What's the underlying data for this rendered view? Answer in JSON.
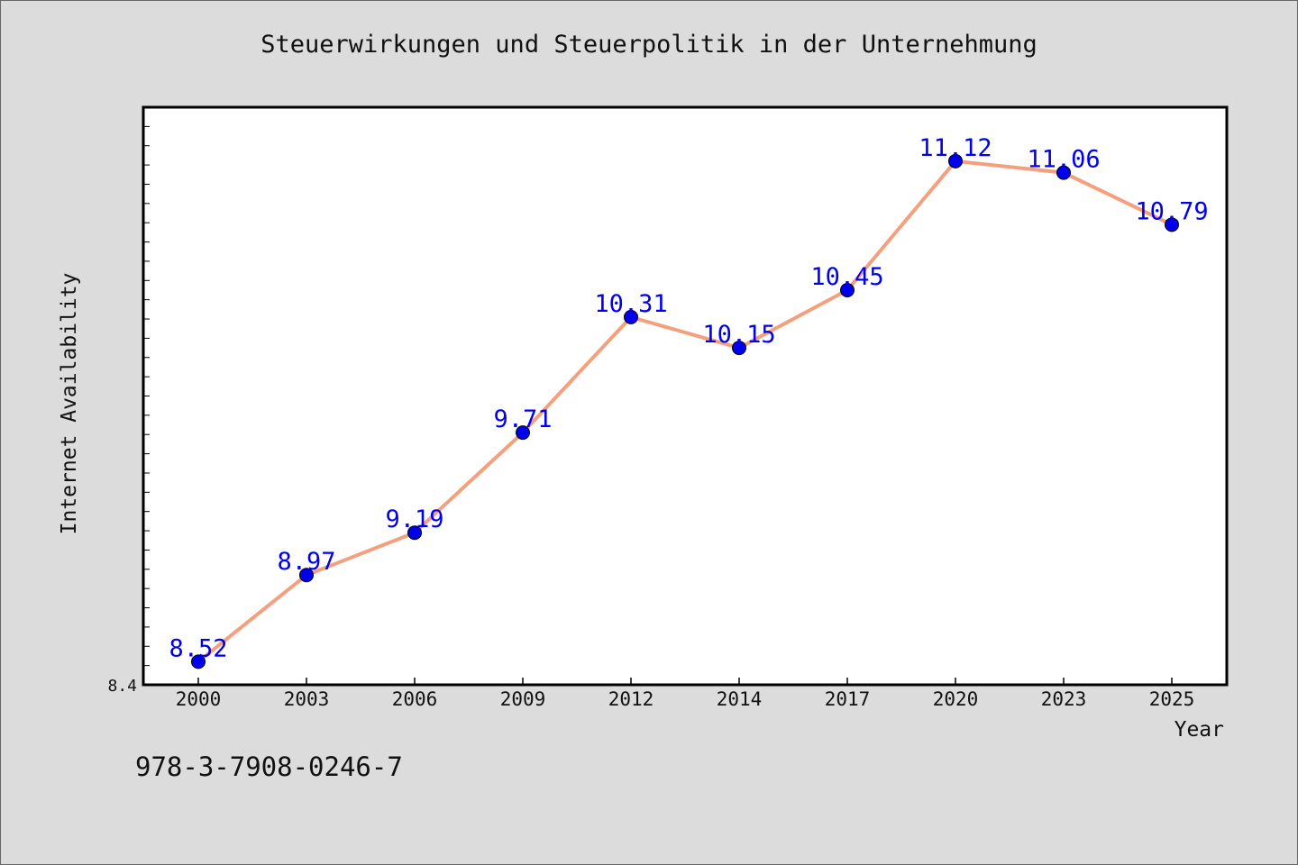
{
  "chart_data": {
    "type": "line",
    "title": "Steuerwirkungen und Steuerpolitik in der Unternehmung",
    "xlabel": "Year",
    "ylabel": "Internet Availability",
    "categories": [
      "2000",
      "2003",
      "2006",
      "2009",
      "2012",
      "2014",
      "2017",
      "2020",
      "2023",
      "2025"
    ],
    "series": [
      {
        "values": [
          8.52,
          8.97,
          9.19,
          9.71,
          10.31,
          10.15,
          10.45,
          11.12,
          11.06,
          10.79
        ]
      }
    ],
    "ylim": [
      8.4,
      11.4
    ],
    "ytick_label": "8.4",
    "grid": false,
    "legend": "none",
    "colors": {
      "line": "#f4a07e",
      "marker": "#0000ee",
      "data_label": "#0000ee",
      "plot_background": "#ffffff",
      "page_background": "#dcdcdc"
    }
  },
  "footer": {
    "isbn": "978-3-7908-0246-7"
  }
}
